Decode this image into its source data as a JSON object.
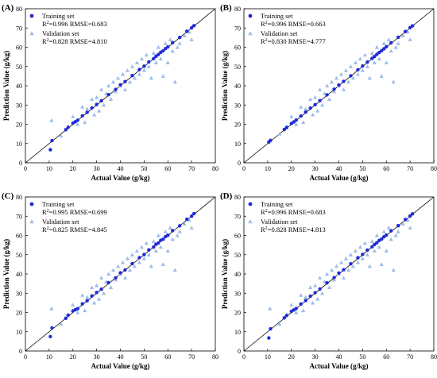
{
  "chart_data": [
    {
      "type": "scatter",
      "panel": "(A)",
      "xlabel": "Actual Value (g/kg)",
      "ylabel": "Prediction Value (g/kg)",
      "xlim": [
        0,
        80
      ],
      "ylim": [
        0,
        80
      ],
      "xticks": [
        "0",
        "10",
        "20",
        "30",
        "40",
        "50",
        "60",
        "70",
        "80"
      ],
      "yticks": [
        "0",
        "10",
        "20",
        "30",
        "40",
        "50",
        "60",
        "70",
        "80"
      ],
      "legend_position": "top-left",
      "series": [
        {
          "name": "Training set",
          "marker": "circle",
          "color": "#1f2ad6",
          "stats": {
            "r2": "0.996",
            "rmse": "0.683"
          },
          "x": [
            10.5,
            11.2,
            17,
            18,
            20,
            21,
            22,
            24,
            26,
            28,
            30,
            32,
            35,
            38,
            40,
            42,
            45,
            48,
            50,
            52,
            54,
            55,
            56,
            57,
            58,
            59,
            60,
            62,
            65,
            68,
            70,
            71
          ],
          "y": [
            6.8,
            11.5,
            17.2,
            18.4,
            20.6,
            21.3,
            22.1,
            24.4,
            26.2,
            28.5,
            30.3,
            32.2,
            35.4,
            38.1,
            40.5,
            42.2,
            45.3,
            48.4,
            50.2,
            52.4,
            54.1,
            55.3,
            56.2,
            57.4,
            58.1,
            59.3,
            60.2,
            62.4,
            65.1,
            68.3,
            70.1,
            71.2
          ]
        },
        {
          "name": "Validation set",
          "marker": "triangle",
          "color": "#9dbde8",
          "stats": {
            "r2": "0.828",
            "rmse": "4.810"
          },
          "x": [
            11,
            15,
            18,
            20,
            22,
            24,
            25,
            26,
            28,
            29,
            30,
            31,
            32,
            33,
            34,
            35,
            36,
            37,
            38,
            39,
            40,
            41,
            42,
            43,
            44,
            45,
            46,
            47,
            48,
            49,
            50,
            51,
            52,
            53,
            54,
            55,
            56,
            57,
            58,
            59,
            60,
            61,
            62,
            63,
            64,
            65,
            67,
            69,
            70
          ],
          "y": [
            22,
            14,
            19,
            24,
            20,
            29,
            21,
            28,
            33,
            25,
            34,
            27,
            38,
            30,
            36,
            40,
            33,
            42,
            37,
            44,
            40,
            46,
            38,
            48,
            42,
            50,
            44,
            52,
            46,
            54,
            48,
            56,
            50,
            44,
            57,
            52,
            60,
            54,
            45,
            62,
            52,
            64,
            58,
            42,
            60,
            62,
            66,
            68,
            64
          ]
        }
      ]
    },
    {
      "type": "scatter",
      "panel": "(B)",
      "xlabel": "Actual Value (g/kg)",
      "ylabel": "Prediction Value (g/kg)",
      "xlim": [
        0,
        80
      ],
      "ylim": [
        0,
        80
      ],
      "xticks": [
        "0",
        "10",
        "20",
        "30",
        "40",
        "50",
        "60",
        "70",
        "80"
      ],
      "yticks": [
        "0",
        "10",
        "20",
        "30",
        "40",
        "50",
        "60",
        "70",
        "80"
      ],
      "legend_position": "top-left",
      "series": [
        {
          "name": "Training set",
          "marker": "circle",
          "color": "#1f2ad6",
          "stats": {
            "r2": "0.996",
            "rmse": "0.663"
          },
          "x": [
            10.5,
            11.2,
            17,
            18,
            20,
            21,
            22,
            24,
            26,
            28,
            30,
            32,
            35,
            38,
            40,
            42,
            45,
            48,
            50,
            52,
            54,
            55,
            56,
            57,
            58,
            59,
            60,
            62,
            65,
            68,
            70,
            71
          ],
          "y": [
            10.8,
            11.6,
            17.3,
            18.3,
            20.4,
            21.2,
            22.2,
            24.3,
            26.3,
            28.4,
            30.2,
            32.3,
            35.3,
            38.2,
            40.4,
            42.3,
            45.2,
            48.3,
            50.3,
            52.3,
            54.2,
            55.2,
            56.3,
            57.3,
            58.2,
            59.2,
            60.3,
            62.3,
            65.2,
            68.2,
            70.2,
            71.1
          ]
        },
        {
          "name": "Validation set",
          "marker": "triangle",
          "color": "#9dbde8",
          "stats": {
            "r2": "0.830",
            "rmse": "4.777"
          },
          "x": [
            11,
            15,
            18,
            20,
            22,
            24,
            25,
            26,
            28,
            29,
            30,
            31,
            32,
            33,
            34,
            35,
            36,
            37,
            38,
            39,
            40,
            41,
            42,
            43,
            44,
            45,
            46,
            47,
            48,
            49,
            50,
            51,
            52,
            53,
            54,
            55,
            56,
            57,
            58,
            59,
            60,
            61,
            62,
            63,
            64,
            65,
            67,
            69,
            70
          ],
          "y": [
            12,
            15,
            19,
            24,
            20,
            29,
            21,
            28,
            33,
            25,
            34,
            27,
            38,
            30,
            36,
            40,
            33,
            42,
            37,
            44,
            40,
            46,
            38,
            48,
            42,
            50,
            44,
            52,
            46,
            54,
            48,
            56,
            50,
            44,
            57,
            52,
            60,
            54,
            45,
            62,
            52,
            64,
            58,
            42,
            60,
            62,
            66,
            68,
            64
          ]
        }
      ]
    },
    {
      "type": "scatter",
      "panel": "(C)",
      "xlabel": "Actual Value (g/kg)",
      "ylabel": "Prediction Value (g/kg)",
      "xlim": [
        0,
        80
      ],
      "ylim": [
        0,
        80
      ],
      "xticks": [
        "0",
        "10",
        "20",
        "30",
        "40",
        "50",
        "60",
        "70",
        "80"
      ],
      "yticks": [
        "0",
        "10",
        "20",
        "30",
        "40",
        "50",
        "60",
        "70",
        "80"
      ],
      "legend_position": "top-left",
      "series": [
        {
          "name": "Training set",
          "marker": "circle",
          "color": "#1f2ad6",
          "stats": {
            "r2": "0.995",
            "rmse": "0.699"
          },
          "x": [
            10.5,
            11.2,
            17,
            18,
            20,
            21,
            22,
            24,
            26,
            28,
            30,
            32,
            35,
            38,
            40,
            42,
            45,
            48,
            50,
            52,
            54,
            55,
            56,
            57,
            58,
            59,
            60,
            62,
            65,
            68,
            70,
            71
          ],
          "y": [
            7.5,
            12.0,
            17.0,
            18.6,
            20.8,
            21.4,
            22.0,
            24.5,
            26.1,
            28.6,
            30.4,
            32.1,
            35.5,
            38.0,
            40.6,
            42.1,
            45.4,
            48.5,
            50.1,
            52.5,
            54.0,
            55.4,
            56.1,
            57.5,
            58.0,
            59.4,
            60.1,
            62.5,
            65.0,
            68.4,
            70.0,
            71.3
          ]
        },
        {
          "name": "Validation set",
          "marker": "triangle",
          "color": "#9dbde8",
          "stats": {
            "r2": "0.825",
            "rmse": "4.845"
          },
          "x": [
            11,
            15,
            18,
            20,
            22,
            24,
            25,
            26,
            28,
            29,
            30,
            31,
            32,
            33,
            34,
            35,
            36,
            37,
            38,
            39,
            40,
            41,
            42,
            43,
            44,
            45,
            46,
            47,
            48,
            49,
            50,
            51,
            52,
            53,
            54,
            55,
            56,
            57,
            58,
            59,
            60,
            61,
            62,
            63,
            64,
            65,
            67,
            69,
            70
          ],
          "y": [
            22,
            14,
            19,
            24,
            20,
            29,
            21,
            28,
            33,
            25,
            34,
            27,
            38,
            30,
            36,
            40,
            33,
            42,
            37,
            44,
            40,
            46,
            38,
            48,
            42,
            50,
            44,
            52,
            46,
            54,
            48,
            56,
            50,
            44,
            57,
            52,
            60,
            54,
            45,
            62,
            52,
            64,
            58,
            42,
            60,
            62,
            66,
            68,
            64
          ]
        }
      ]
    },
    {
      "type": "scatter",
      "panel": "(D)",
      "xlabel": "Actual Value (g/kg)",
      "ylabel": "Prediction Value (g/kg)",
      "xlim": [
        0,
        80
      ],
      "ylim": [
        0,
        80
      ],
      "xticks": [
        "0",
        "10",
        "20",
        "30",
        "40",
        "50",
        "60",
        "70",
        "80"
      ],
      "yticks": [
        "0",
        "10",
        "20",
        "30",
        "40",
        "50",
        "60",
        "70",
        "80"
      ],
      "legend_position": "top-left",
      "series": [
        {
          "name": "Training set",
          "marker": "circle",
          "color": "#1f2ad6",
          "stats": {
            "r2": "0.996",
            "rmse": "0.683"
          },
          "x": [
            10.5,
            11.2,
            17,
            18,
            20,
            21,
            22,
            24,
            26,
            28,
            30,
            32,
            35,
            38,
            40,
            42,
            45,
            48,
            50,
            52,
            54,
            55,
            56,
            57,
            58,
            59,
            60,
            62,
            65,
            68,
            70,
            71
          ],
          "y": [
            6.8,
            11.5,
            17.2,
            18.4,
            20.6,
            21.3,
            22.1,
            24.4,
            26.2,
            28.5,
            30.3,
            32.2,
            35.4,
            38.1,
            40.5,
            42.2,
            45.3,
            48.4,
            50.2,
            52.4,
            54.1,
            55.3,
            56.2,
            57.4,
            58.1,
            59.3,
            60.2,
            62.4,
            65.1,
            68.3,
            70.1,
            71.2
          ]
        },
        {
          "name": "Validation set",
          "marker": "triangle",
          "color": "#9dbde8",
          "stats": {
            "r2": "0.828",
            "rmse": "4.813"
          },
          "x": [
            11,
            15,
            18,
            20,
            22,
            24,
            25,
            26,
            28,
            29,
            30,
            31,
            32,
            33,
            34,
            35,
            36,
            37,
            38,
            39,
            40,
            41,
            42,
            43,
            44,
            45,
            46,
            47,
            48,
            49,
            50,
            51,
            52,
            53,
            54,
            55,
            56,
            57,
            58,
            59,
            60,
            61,
            62,
            63,
            64,
            65,
            67,
            69,
            70
          ],
          "y": [
            22,
            14,
            19,
            24,
            20,
            29,
            21,
            28,
            33,
            25,
            34,
            27,
            38,
            30,
            36,
            40,
            33,
            42,
            37,
            44,
            40,
            46,
            38,
            48,
            42,
            50,
            44,
            52,
            46,
            54,
            48,
            56,
            50,
            44,
            57,
            52,
            60,
            54,
            45,
            62,
            52,
            64,
            58,
            42,
            60,
            62,
            66,
            68,
            64
          ]
        }
      ]
    }
  ]
}
